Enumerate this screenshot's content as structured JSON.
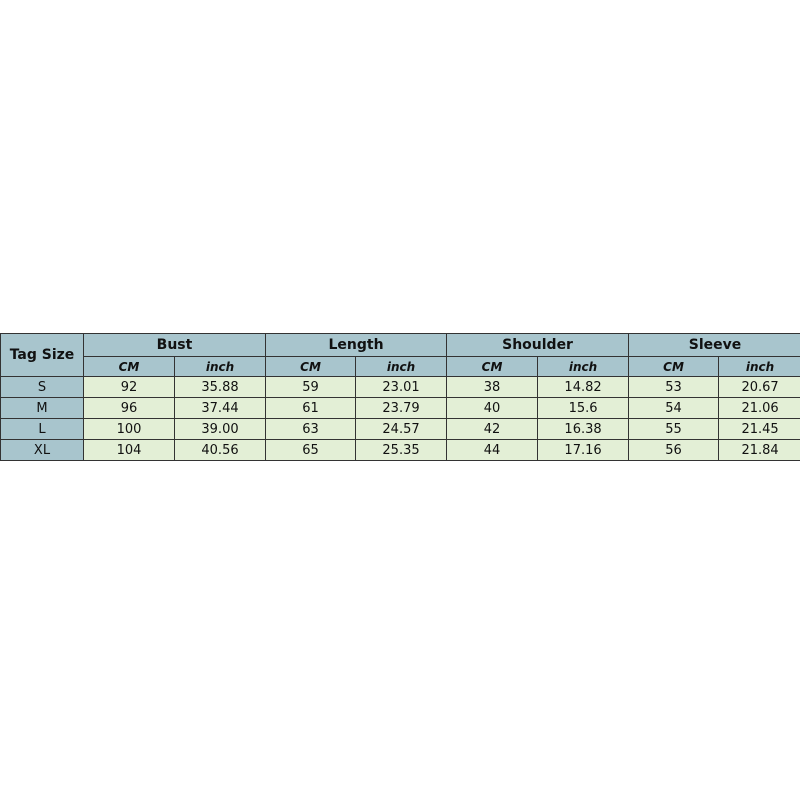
{
  "table": {
    "corner_header": "Tag Size",
    "groups": [
      "Bust",
      "Length",
      "Shoulder",
      "Sleeve"
    ],
    "unit_headers": [
      "CM",
      "inch"
    ],
    "rows": [
      {
        "size": "S",
        "values": [
          "92",
          "35.88",
          "59",
          "23.01",
          "38",
          "14.82",
          "53",
          "20.67"
        ]
      },
      {
        "size": "M",
        "values": [
          "96",
          "37.44",
          "61",
          "23.79",
          "40",
          "15.6",
          "54",
          "21.06"
        ]
      },
      {
        "size": "L",
        "values": [
          "100",
          "39.00",
          "63",
          "24.57",
          "42",
          "16.38",
          "55",
          "21.45"
        ]
      },
      {
        "size": "XL",
        "values": [
          "104",
          "40.56",
          "65",
          "25.35",
          "44",
          "17.16",
          "56",
          "21.84"
        ]
      }
    ],
    "colors": {
      "header": "#a8c5cd",
      "cell": "#e3efd6"
    }
  }
}
